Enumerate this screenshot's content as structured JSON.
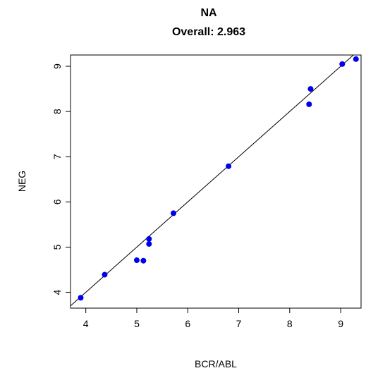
{
  "chart_data": {
    "type": "scatter",
    "title": "NA",
    "subtitle": "Overall: 2.963",
    "xlabel": "BCR/ABL",
    "ylabel": "NEG",
    "xlim": [
      3.7,
      9.4
    ],
    "ylim": [
      3.65,
      9.25
    ],
    "xticks": [
      4,
      5,
      6,
      7,
      8,
      9
    ],
    "yticks": [
      4,
      5,
      6,
      7,
      8,
      9
    ],
    "grid": false,
    "reference_line": {
      "intercept": 0,
      "slope": 1
    },
    "point_color": "#0000ee",
    "line_color": "#000000",
    "points": [
      {
        "x": 3.9,
        "y": 3.88
      },
      {
        "x": 4.37,
        "y": 4.39
      },
      {
        "x": 5.0,
        "y": 4.71
      },
      {
        "x": 5.13,
        "y": 4.7
      },
      {
        "x": 5.24,
        "y": 5.07
      },
      {
        "x": 5.24,
        "y": 5.18
      },
      {
        "x": 5.72,
        "y": 5.75
      },
      {
        "x": 6.8,
        "y": 6.79
      },
      {
        "x": 8.38,
        "y": 8.16
      },
      {
        "x": 8.41,
        "y": 8.5
      },
      {
        "x": 9.03,
        "y": 9.05
      },
      {
        "x": 9.3,
        "y": 9.16
      }
    ]
  }
}
